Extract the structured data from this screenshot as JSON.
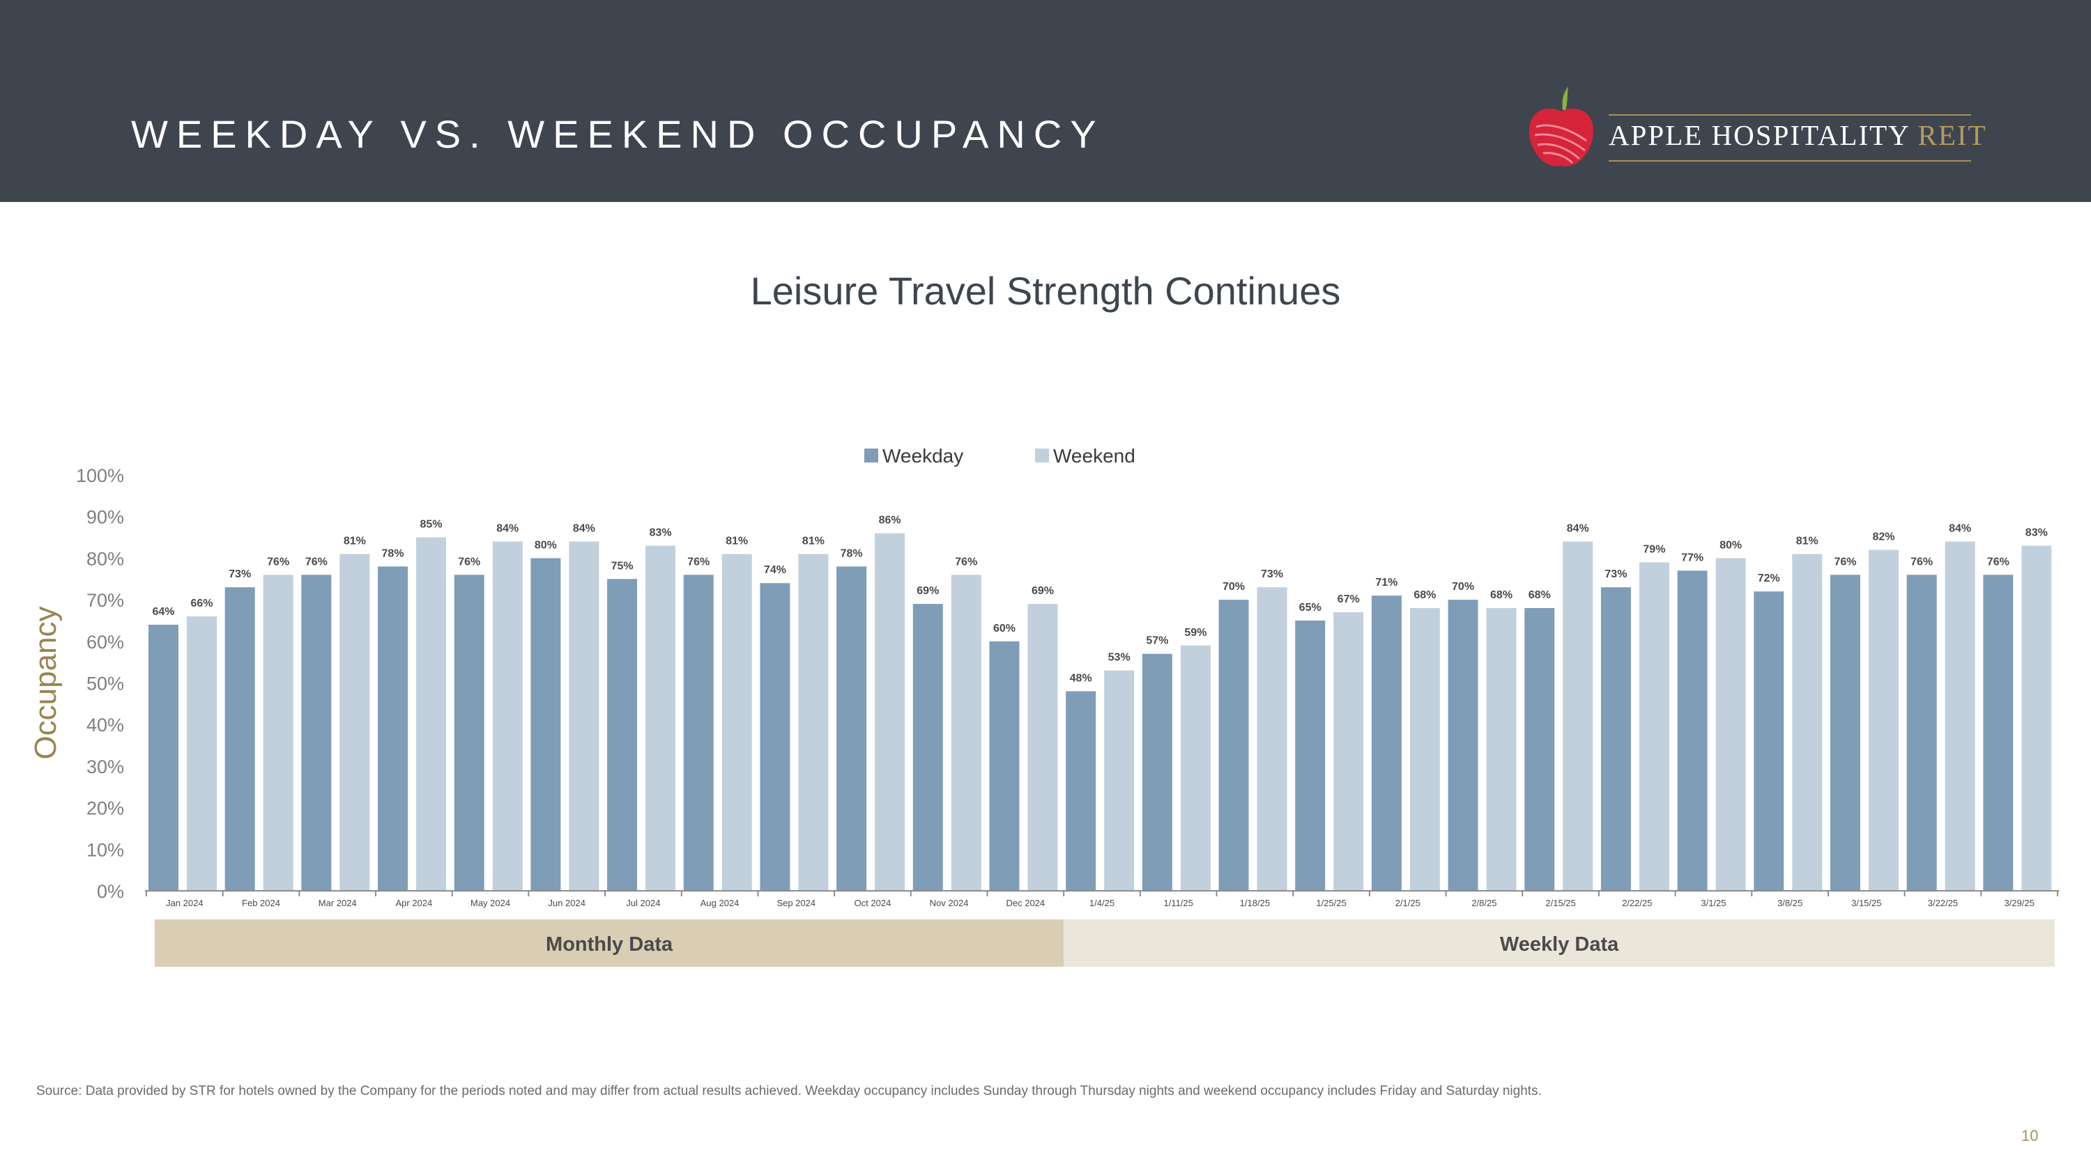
{
  "header": {
    "title": "WEEKDAY VS. WEEKEND OCCUPANCY"
  },
  "logo": {
    "text_main": "APPLE HOSPITALITY ",
    "text_accent": "REIT"
  },
  "chart_title": "Leisure Travel Strength Continues",
  "chart_data": {
    "type": "bar",
    "title": "Leisure Travel Strength Continues",
    "xlabel": "",
    "ylabel": "Occupancy",
    "ylim": [
      0,
      100
    ],
    "yticks": [
      "0%",
      "10%",
      "20%",
      "30%",
      "40%",
      "50%",
      "60%",
      "70%",
      "80%",
      "90%",
      "100%"
    ],
    "categories": [
      "Jan 2024",
      "Feb 2024",
      "Mar 2024",
      "Apr 2024",
      "May 2024",
      "Jun 2024",
      "Jul 2024",
      "Aug 2024",
      "Sep 2024",
      "Oct 2024",
      "Nov 2024",
      "Dec 2024",
      "1/4/25",
      "1/11/25",
      "1/18/25",
      "1/25/25",
      "2/1/25",
      "2/8/25",
      "2/15/25",
      "2/22/25",
      "3/1/25",
      "3/8/25",
      "3/15/25",
      "3/22/25",
      "3/29/25"
    ],
    "series": [
      {
        "name": "Weekday",
        "color": "#7f9db7",
        "values": [
          64,
          73,
          76,
          78,
          76,
          80,
          75,
          76,
          74,
          78,
          69,
          60,
          48,
          57,
          70,
          65,
          71,
          70,
          68,
          73,
          77,
          72,
          76,
          76,
          76
        ],
        "labels": [
          "64%",
          "73%",
          "76%",
          "78%",
          "76%",
          "80%",
          "75%",
          "76%",
          "74%",
          "78%",
          "69%",
          "60%",
          "48%",
          "57%",
          "70%",
          "65%",
          "71%",
          "70%",
          "68%",
          "73%",
          "77%",
          "72%",
          "76%",
          "76%",
          "76%"
        ]
      },
      {
        "name": "Weekend",
        "color": "#c1d0dc",
        "values": [
          66,
          76,
          81,
          85,
          84,
          84,
          83,
          81,
          81,
          86,
          76,
          69,
          53,
          59,
          73,
          67,
          68,
          68,
          84,
          79,
          80,
          81,
          82,
          84,
          83
        ],
        "labels": [
          "66%",
          "76%",
          "81%",
          "85%",
          "84%",
          "84%",
          "83%",
          "81%",
          "81%",
          "86%",
          "76%",
          "69%",
          "53%",
          "59%",
          "73%",
          "67%",
          "68%",
          "68%",
          "84%",
          "79%",
          "80%",
          "81%",
          "82%",
          "84%",
          "83%"
        ]
      }
    ],
    "legend_position": "top-center",
    "grid": false,
    "groups": [
      {
        "label": "Monthly Data",
        "count": 12,
        "color": "#d9ceb4"
      },
      {
        "label": "Weekly Data",
        "count": 13,
        "color": "#ebe6da"
      }
    ]
  },
  "source_note": "Source:  Data provided by STR for hotels owned by the Company for the periods noted and may differ from actual results achieved. Weekday occupancy includes Sunday through Thursday nights and weekend occupancy includes Friday and Saturday nights.",
  "page_number": "10"
}
